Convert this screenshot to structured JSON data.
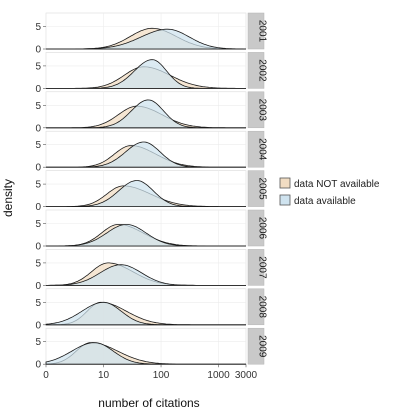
{
  "chart_data": {
    "type": "area",
    "ylabel": "density",
    "xlabel": "number of citations",
    "x_scale": "log",
    "x_ticks": [
      "0",
      "10",
      "100",
      "1000",
      "3000"
    ],
    "x_tick_values": [
      1,
      10,
      100,
      1000,
      3000
    ],
    "xlim": [
      1,
      3000
    ],
    "y_ticks": [
      "0",
      "5"
    ],
    "grid": true,
    "legend_position": "right",
    "series": [
      {
        "name": "data NOT available",
        "fill": "#f1dcc2"
      },
      {
        "name": "data available",
        "fill": "#cfe3ef"
      }
    ],
    "panels": [
      {
        "year": "2001",
        "not_available": {
          "peak": 70,
          "spread": 0.4,
          "height": 4.6,
          "skew": -0.05
        },
        "available": {
          "peak": 130,
          "spread": 0.42,
          "height": 4.4,
          "skew": 0.1
        }
      },
      {
        "year": "2002",
        "not_available": {
          "peak": 50,
          "spread": 0.4,
          "height": 4.8,
          "skew": -0.15
        },
        "available": {
          "peak": 70,
          "spread": 0.28,
          "height": 6.4,
          "skew": 0.1
        }
      },
      {
        "year": "2003",
        "not_available": {
          "peak": 38,
          "spread": 0.38,
          "height": 4.8,
          "skew": -0.15
        },
        "available": {
          "peak": 60,
          "spread": 0.28,
          "height": 6.2,
          "skew": 0.05
        }
      },
      {
        "year": "2004",
        "not_available": {
          "peak": 30,
          "spread": 0.36,
          "height": 4.8,
          "skew": -0.2
        },
        "available": {
          "peak": 50,
          "spread": 0.3,
          "height": 5.6,
          "skew": 0.05
        }
      },
      {
        "year": "2005",
        "not_available": {
          "peak": 22,
          "spread": 0.38,
          "height": 4.6,
          "skew": -0.25
        },
        "available": {
          "peak": 38,
          "spread": 0.3,
          "height": 5.8,
          "skew": 0.05
        }
      },
      {
        "year": "2006",
        "not_available": {
          "peak": 18,
          "spread": 0.36,
          "height": 4.8,
          "skew": -0.2
        },
        "available": {
          "peak": 25,
          "spread": 0.34,
          "height": 4.8,
          "skew": 0.0
        }
      },
      {
        "year": "2007",
        "not_available": {
          "peak": 12,
          "spread": 0.36,
          "height": 5.0,
          "skew": -0.2
        },
        "available": {
          "peak": 20,
          "spread": 0.36,
          "height": 4.6,
          "skew": 0.0
        }
      },
      {
        "year": "2008",
        "not_available": {
          "peak": 9,
          "spread": 0.34,
          "height": 5.0,
          "skew": -0.3
        },
        "available": {
          "peak": 10,
          "spread": 0.34,
          "height": 5.0,
          "skew": 0.1
        }
      },
      {
        "year": "2009",
        "not_available": {
          "peak": 6,
          "spread": 0.36,
          "height": 4.8,
          "skew": -0.3
        },
        "available": {
          "peak": 7,
          "spread": 0.36,
          "height": 4.8,
          "skew": 0.1
        }
      }
    ]
  }
}
